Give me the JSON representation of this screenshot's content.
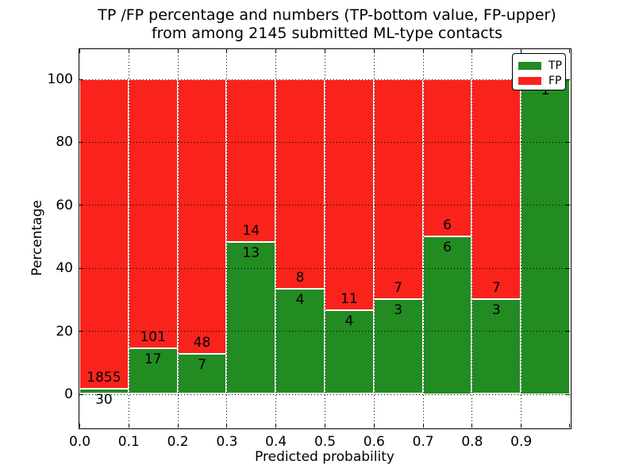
{
  "figure": {
    "title_line1": "TP /FP percentage and numbers (TP-bottom value, FP-upper)",
    "title_line2": "from among 2145 submitted ML-type contacts"
  },
  "axes": {
    "xlabel": "Predicted probability",
    "ylabel": "Percentage",
    "xtick_labels": [
      "0.0",
      "0.1",
      "0.2",
      "0.3",
      "0.4",
      "0.5",
      "0.6",
      "0.7",
      "0.8",
      "0.9"
    ],
    "ytick_labels": [
      "0",
      "20",
      "40",
      "60",
      "80",
      "100"
    ],
    "ytick_values": [
      0,
      20,
      40,
      60,
      80,
      100
    ]
  },
  "legend": {
    "items": [
      {
        "label": "TP",
        "color": "#228B22"
      },
      {
        "label": "FP",
        "color": "#F9231C"
      }
    ]
  },
  "colors": {
    "tp": "#228B22",
    "fp": "#F9231C",
    "grid": "#000000",
    "background": "#FFFFFF"
  },
  "chart_data": {
    "type": "bar",
    "stacked": true,
    "title": "TP /FP percentage and numbers (TP-bottom value, FP-upper) from among 2145 submitted ML-type contacts",
    "xlabel": "Predicted probability",
    "ylabel": "Percentage",
    "xlim": [
      0.0,
      1.0
    ],
    "ylim": [
      -11,
      110
    ],
    "grid": true,
    "grid_style": "dotted",
    "legend_position": "upper right",
    "total_contacts": 2145,
    "bin_edges": [
      0.0,
      0.1,
      0.2,
      0.3,
      0.4,
      0.5,
      0.6,
      0.7,
      0.8,
      0.9,
      1.0
    ],
    "series": [
      {
        "name": "TP",
        "counts": [
          30,
          17,
          7,
          13,
          4,
          4,
          3,
          6,
          3,
          1
        ],
        "percent": [
          1.59,
          14.41,
          12.73,
          48.15,
          33.33,
          26.67,
          30.0,
          50.0,
          30.0,
          100.0
        ]
      },
      {
        "name": "FP",
        "counts": [
          1855,
          101,
          48,
          14,
          8,
          11,
          7,
          6,
          7,
          0
        ],
        "percent": [
          98.41,
          85.59,
          87.27,
          51.85,
          66.67,
          73.33,
          70.0,
          50.0,
          70.0,
          0.0
        ]
      }
    ]
  }
}
